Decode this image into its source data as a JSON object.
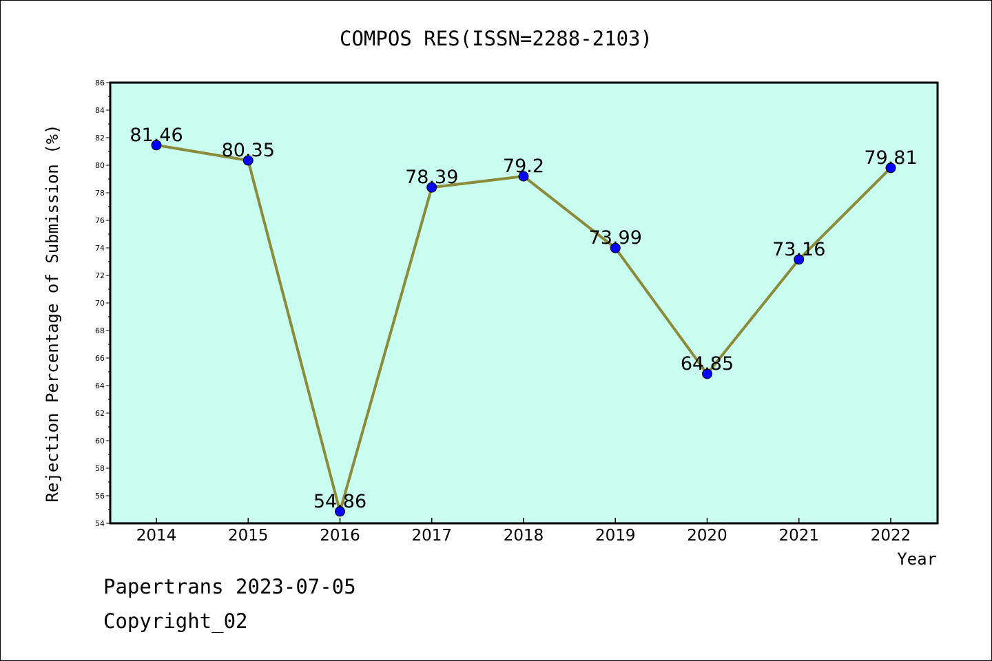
{
  "chart_data": {
    "type": "line",
    "title": "COMPOS RES(ISSN=2288-2103)",
    "xlabel": "Year",
    "ylabel": "Rejection Percentage of Submission (%)",
    "categories": [
      "2014",
      "2015",
      "2016",
      "2017",
      "2018",
      "2019",
      "2020",
      "2021",
      "2022"
    ],
    "values": [
      81.46,
      80.35,
      54.86,
      78.39,
      79.2,
      73.99,
      64.85,
      73.16,
      79.81
    ],
    "data_labels": [
      "81.46",
      "80.35",
      "54.86",
      "78.39",
      "79.2",
      "73.99",
      "64.85",
      "73.16",
      "79.81"
    ],
    "ylim": [
      54,
      86
    ],
    "ytick_labels": [
      "54",
      "56",
      "58",
      "60",
      "62",
      "64",
      "66",
      "68",
      "70",
      "72",
      "74",
      "76",
      "78",
      "80",
      "82",
      "84",
      "86"
    ],
    "grid": false,
    "legend": "none",
    "colors": {
      "plot_background": "#c8fdef",
      "line": "#8b8b3a",
      "marker": "#0000ff",
      "axis": "#000000"
    }
  },
  "footer": {
    "source": "Papertrans 2023-07-05",
    "copyright": "Copyright_02"
  }
}
